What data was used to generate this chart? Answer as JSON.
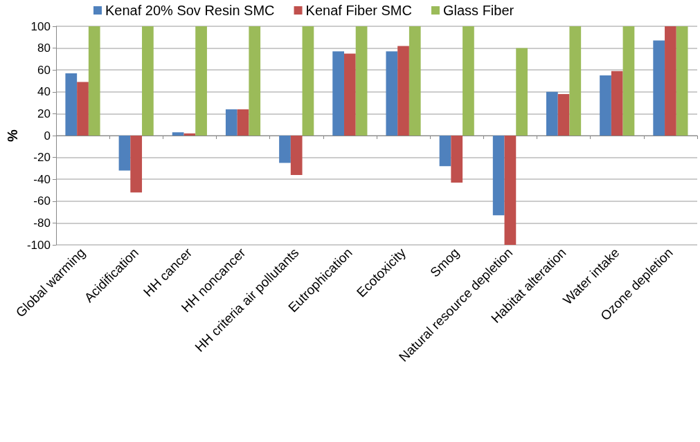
{
  "chart_data": {
    "type": "bar",
    "ylabel": "%",
    "categories": [
      "Global warming",
      "Acidification",
      "HH cancer",
      "HH noncancer",
      "HH criteria air pollutants",
      "Eutrophication",
      "Ecotoxicity",
      "Smog",
      "Natural resource depletion",
      "Habitat alteration",
      "Water intake",
      "Ozone depletion"
    ],
    "series": [
      {
        "name": "Kenaf 20% Sov Resin SMC",
        "color": "#4f81bd",
        "values": [
          57,
          -32,
          3,
          24,
          -25,
          77,
          77,
          -28,
          -73,
          40,
          55,
          87
        ]
      },
      {
        "name": "Kenaf Fiber SMC",
        "color": "#c0504d",
        "values": [
          49,
          -52,
          2,
          24,
          -36,
          75,
          82,
          -43,
          -100,
          38,
          59,
          100
        ]
      },
      {
        "name": "Glass Fiber",
        "color": "#9bbb59",
        "values": [
          100,
          100,
          100,
          100,
          100,
          100,
          100,
          100,
          80,
          100,
          100,
          100
        ]
      }
    ],
    "ylim": [
      -100,
      100
    ],
    "yticks": [
      -100,
      -80,
      -60,
      -40,
      -20,
      0,
      20,
      40,
      60,
      80,
      100
    ],
    "grid": "y",
    "legend": "top"
  }
}
